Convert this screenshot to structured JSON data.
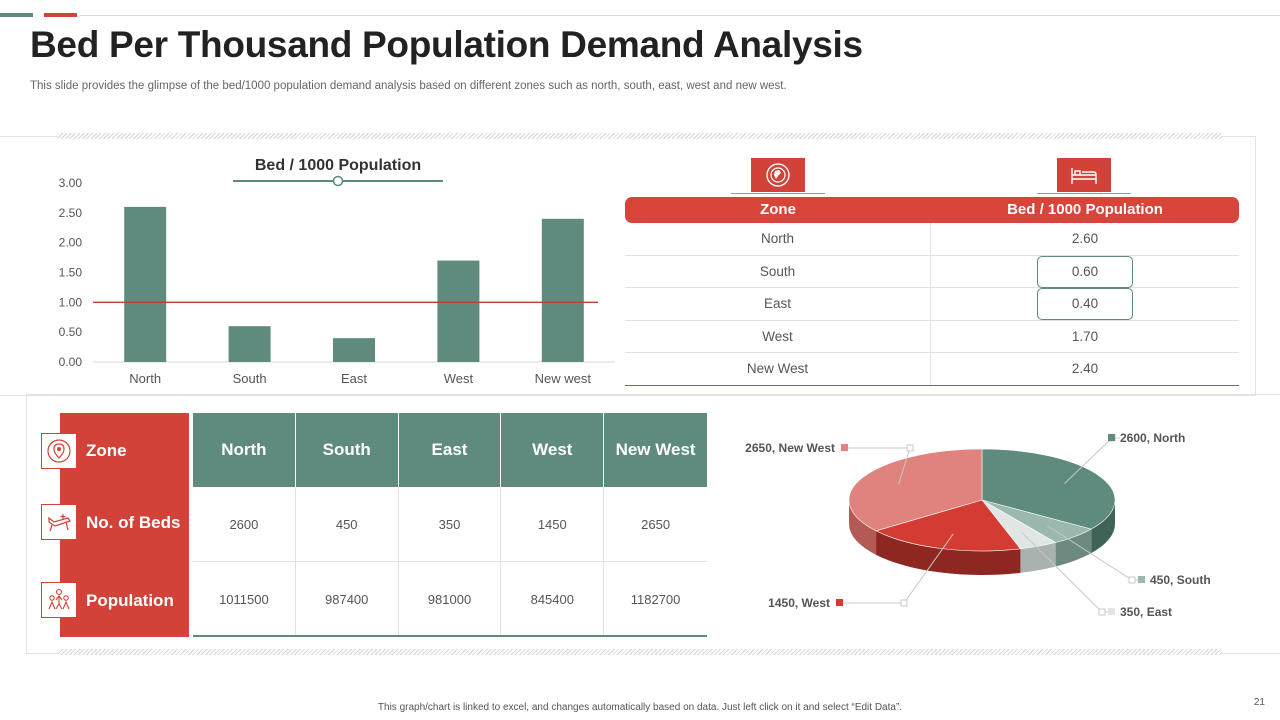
{
  "slide": {
    "title": "Bed Per Thousand Population Demand Analysis",
    "subtitle": "This slide provides the glimpse of the bed/1000 population demand analysis based on different zones such as north, south, east, west and new west.",
    "footer": "This graph/chart is linked to excel, and changes automatically based on data. Just left click on it and select “Edit Data”.",
    "page_number": "21"
  },
  "colors": {
    "red": "#d24238",
    "teal": "#5f8a7e",
    "pink": "#e0837e",
    "light_teal": "#9bb8ae",
    "light_gray": "#dfe6e3"
  },
  "zone_table": {
    "headers": [
      "Zone",
      "Bed / 1000 Population"
    ],
    "icons": [
      "globe-icon",
      "bed-icon"
    ],
    "rows": [
      {
        "zone": "North",
        "value": "2.60"
      },
      {
        "zone": "South",
        "value": "0.60"
      },
      {
        "zone": "East",
        "value": "0.40"
      },
      {
        "zone": "West",
        "value": "1.70"
      },
      {
        "zone": "New West",
        "value": "2.40"
      }
    ]
  },
  "beds_table": {
    "row_labels": [
      "Zone",
      "No. of Beds",
      "Population"
    ],
    "row_icons": [
      "map-pin-icon",
      "hospital-bed-icon",
      "people-icon"
    ],
    "headers": [
      "North",
      "South",
      "East",
      "West",
      "New West"
    ],
    "beds": [
      "2600",
      "450",
      "350",
      "1450",
      "2650"
    ],
    "population": [
      "1011500",
      "987400",
      "981000",
      "845400",
      "1182700"
    ]
  },
  "chart_data": [
    {
      "type": "bar",
      "title": "Bed / 1000 Population",
      "categories": [
        "North",
        "South",
        "East",
        "West",
        "New west"
      ],
      "values": [
        2.6,
        0.6,
        0.4,
        1.7,
        2.4
      ],
      "ylim": [
        0,
        3
      ],
      "yticks": [
        "0.00",
        "0.50",
        "1.00",
        "1.50",
        "2.00",
        "2.50",
        "3.00"
      ],
      "reference_line": 1.0,
      "xlabel": "",
      "ylabel": ""
    },
    {
      "type": "pie",
      "style": "3d",
      "slices": [
        {
          "label": "North",
          "value": 2600,
          "text": "2600, North"
        },
        {
          "label": "South",
          "value": 450,
          "text": "450, South"
        },
        {
          "label": "East",
          "value": 350,
          "text": "350, East"
        },
        {
          "label": "West",
          "value": 1450,
          "text": "1450, West"
        },
        {
          "label": "New West",
          "value": 2650,
          "text": "2650, New West"
        }
      ]
    }
  ]
}
